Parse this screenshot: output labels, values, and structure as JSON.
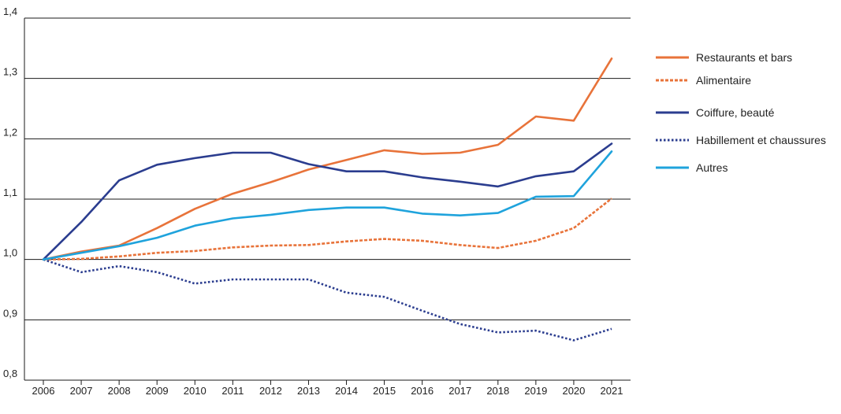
{
  "chart_data": {
    "type": "line",
    "x": [
      2006,
      2007,
      2008,
      2009,
      2010,
      2011,
      2012,
      2013,
      2014,
      2015,
      2016,
      2017,
      2018,
      2019,
      2020,
      2021
    ],
    "x_tick_labels": [
      "2006",
      "2007",
      "2008",
      "2009",
      "2010",
      "2011",
      "2012",
      "2013",
      "2014",
      "2015",
      "2016",
      "2017",
      "2018",
      "2019",
      "2020",
      "2021"
    ],
    "y_tick_labels": [
      "0,8",
      "0,9",
      "1,0",
      "1,1",
      "1,2",
      "1,3",
      "1,4"
    ],
    "y_ticks": [
      0.8,
      0.9,
      1.0,
      1.1,
      1.2,
      1.3,
      1.4
    ],
    "ylim": [
      0.8,
      1.4
    ],
    "grid": "horizontal",
    "legend_position": "right",
    "series": [
      {
        "name": "Restaurants et bars",
        "color": "#e8733a",
        "style": "solid",
        "values": [
          1.0,
          1.013,
          1.023,
          1.052,
          1.084,
          1.109,
          1.128,
          1.149,
          1.165,
          1.181,
          1.175,
          1.177,
          1.19,
          1.237,
          1.23,
          1.333
        ]
      },
      {
        "name": "Alimentaire",
        "color": "#e8733a",
        "style": "dashed",
        "values": [
          1.0,
          1.001,
          1.005,
          1.011,
          1.014,
          1.02,
          1.023,
          1.024,
          1.03,
          1.034,
          1.031,
          1.024,
          1.019,
          1.031,
          1.052,
          1.101
        ]
      },
      {
        "name": "Coiffure, beauté",
        "color": "#2b3d8f",
        "style": "solid",
        "values": [
          1.0,
          1.062,
          1.131,
          1.157,
          1.168,
          1.177,
          1.177,
          1.158,
          1.146,
          1.146,
          1.136,
          1.129,
          1.121,
          1.138,
          1.146,
          1.192
        ]
      },
      {
        "name": "Habillement et chaussures",
        "color": "#2b3d8f",
        "style": "dotted",
        "values": [
          1.0,
          0.979,
          0.989,
          0.979,
          0.96,
          0.967,
          0.967,
          0.967,
          0.945,
          0.938,
          0.915,
          0.893,
          0.879,
          0.882,
          0.866,
          0.885
        ]
      },
      {
        "name": "Autres",
        "color": "#1fa3dc",
        "style": "solid",
        "values": [
          1.0,
          1.011,
          1.022,
          1.036,
          1.056,
          1.068,
          1.074,
          1.082,
          1.086,
          1.086,
          1.076,
          1.073,
          1.077,
          1.104,
          1.105,
          1.179
        ]
      }
    ]
  }
}
